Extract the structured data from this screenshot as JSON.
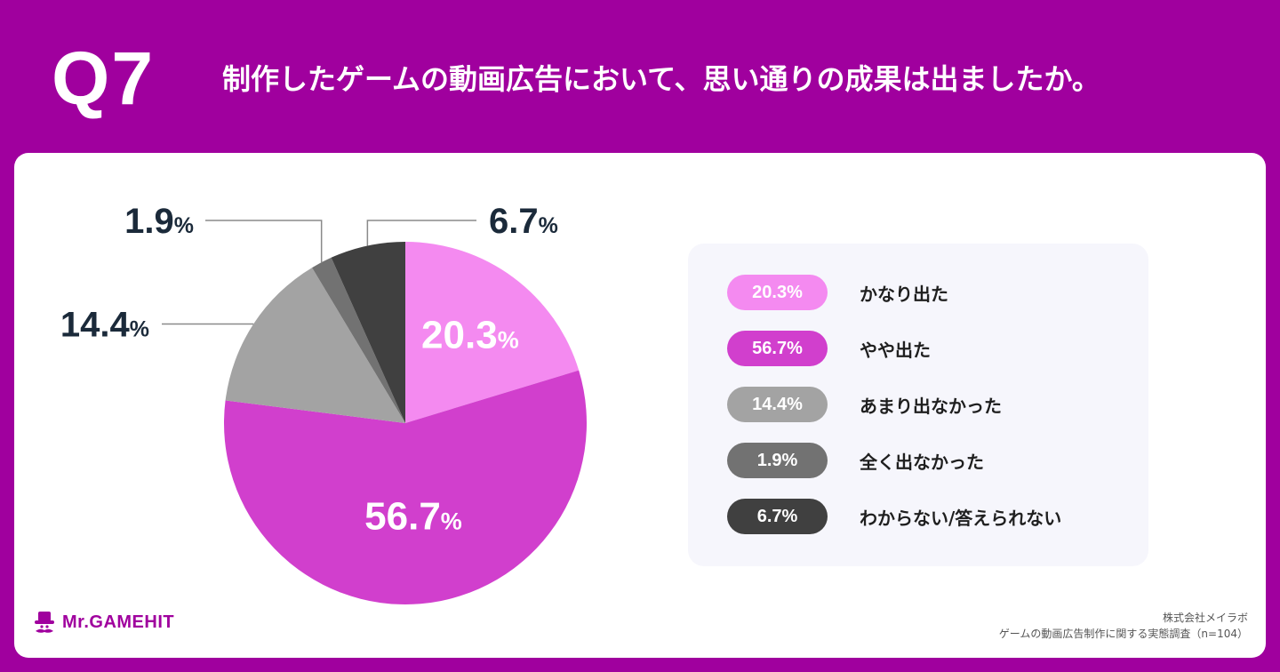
{
  "header": {
    "question_number": "Q7",
    "question": "制作したゲームの動画広告において、思い通りの成果は出ましたか。"
  },
  "colors": {
    "background": "#A0009E",
    "card": "#FFFFFF",
    "legend_box": "#F6F6FC"
  },
  "chart_data": {
    "type": "pie",
    "title": "",
    "start": "12 o'clock, clockwise",
    "slices": [
      {
        "label": "かなり出た",
        "value": 20.3,
        "value_text": "20.3",
        "unit": "%",
        "color": "#F48AF0",
        "label_position": "inside"
      },
      {
        "label": "やや出た",
        "value": 56.7,
        "value_text": "56.7",
        "unit": "%",
        "color": "#D13FCD",
        "label_position": "inside"
      },
      {
        "label": "あまり出なかった",
        "value": 14.4,
        "value_text": "14.4",
        "unit": "%",
        "color": "#A3A3A3",
        "label_position": "outside-left"
      },
      {
        "label": "全く出なかった",
        "value": 1.9,
        "value_text": "1.9",
        "unit": "%",
        "color": "#727272",
        "label_position": "outside-top-left"
      },
      {
        "label": "わからない/答えられない",
        "value": 6.7,
        "value_text": "6.7",
        "unit": "%",
        "color": "#404040",
        "label_position": "outside-top-right"
      }
    ]
  },
  "legend": {
    "items": [
      {
        "pct": "20.3%",
        "label": "かなり出た",
        "color": "#F48AF0"
      },
      {
        "pct": "56.7%",
        "label": "やや出た",
        "color": "#D13FCD"
      },
      {
        "pct": "14.4%",
        "label": "あまり出なかった",
        "color": "#A3A3A3"
      },
      {
        "pct": "1.9%",
        "label": "全く出なかった",
        "color": "#727272"
      },
      {
        "pct": "6.7%",
        "label": "わからない/答えられない",
        "color": "#404040"
      }
    ]
  },
  "footer": {
    "logo_text": "Mr.GAMEHIT",
    "logo_icon": "hat-mustache-icon",
    "source_company": "株式会社メイラボ",
    "source_survey": "ゲームの動画広告制作に関する実態調査（n=104）"
  }
}
